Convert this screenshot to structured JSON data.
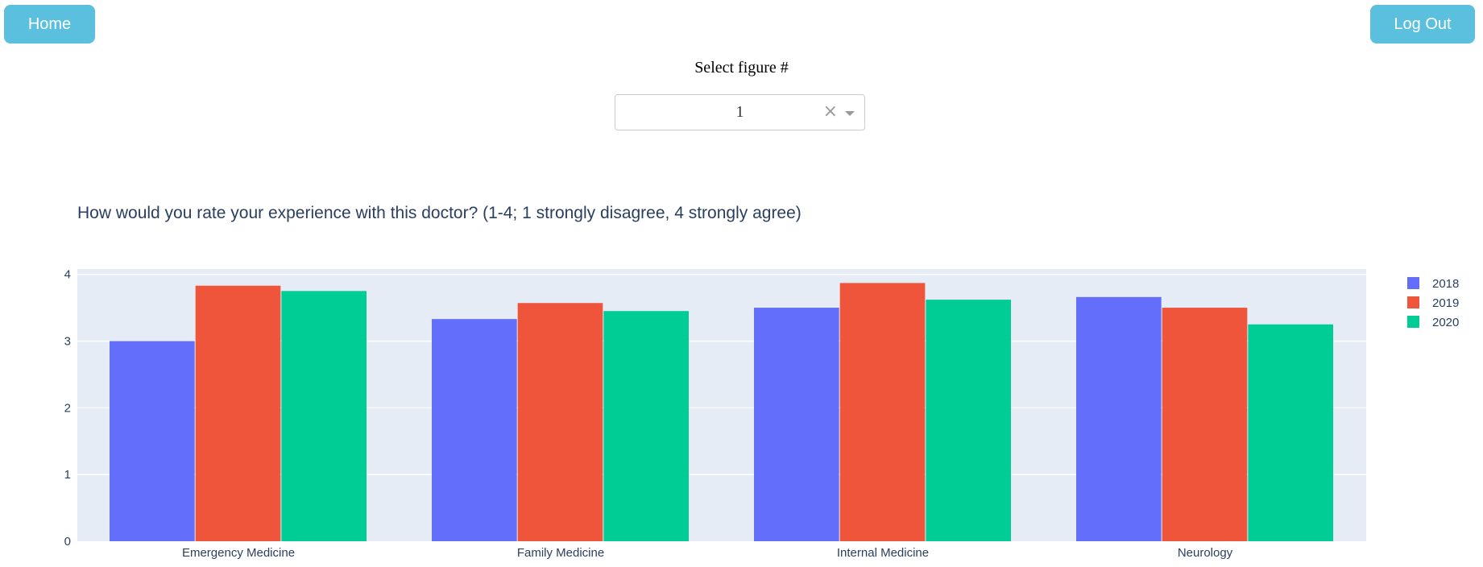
{
  "nav": {
    "home_label": "Home",
    "logout_label": "Log Out"
  },
  "selector": {
    "label": "Select figure #",
    "value": "1",
    "clear_glyph": "×"
  },
  "colors": {
    "button": "#5bc0de",
    "plot_bg": "#e5ecf6",
    "series": [
      "#636efa",
      "#ef553b",
      "#00cc96"
    ]
  },
  "chart_data": {
    "type": "bar",
    "title": "How would you rate your experience with this doctor? (1-4; 1 strongly disagree, 4 strongly agree)",
    "categories": [
      "Emergency Medicine",
      "Family Medicine",
      "Internal Medicine",
      "Neurology"
    ],
    "series": [
      {
        "name": "2018",
        "values": [
          3.0,
          3.33,
          3.5,
          3.66
        ]
      },
      {
        "name": "2019",
        "values": [
          3.83,
          3.57,
          3.87,
          3.5
        ]
      },
      {
        "name": "2020",
        "values": [
          3.75,
          3.45,
          3.62,
          3.25
        ]
      }
    ],
    "yticks": [
      "0",
      "1",
      "2",
      "3",
      "4"
    ],
    "ylim": [
      0,
      4.08
    ],
    "grid": true,
    "legend": "top-right"
  }
}
